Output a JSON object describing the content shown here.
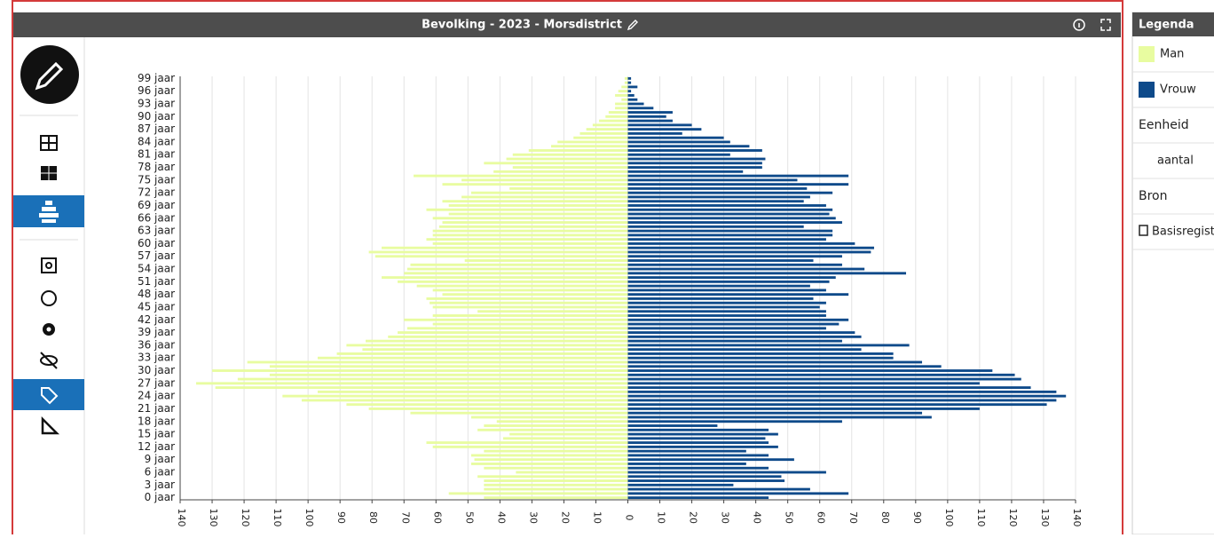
{
  "chart_data": {
    "type": "pyramid",
    "title": "Bevolking - 2023 - Morsdistrict",
    "categories": [
      "0 jaar",
      null,
      null,
      "3 jaar",
      null,
      null,
      "6 jaar",
      null,
      null,
      "9 jaar",
      null,
      null,
      "12 jaar",
      null,
      null,
      "15 jaar",
      null,
      null,
      "18 jaar",
      null,
      null,
      "21 jaar",
      null,
      null,
      "24 jaar",
      null,
      null,
      "27 jaar",
      null,
      null,
      "30 jaar",
      null,
      null,
      "33 jaar",
      null,
      null,
      "36 jaar",
      null,
      null,
      "39 jaar",
      null,
      null,
      "42 jaar",
      null,
      null,
      "45 jaar",
      null,
      null,
      "48 jaar",
      null,
      null,
      "51 jaar",
      null,
      null,
      "54 jaar",
      null,
      null,
      "57 jaar",
      null,
      null,
      "60 jaar",
      null,
      null,
      "63 jaar",
      null,
      null,
      "66 jaar",
      null,
      null,
      "69 jaar",
      null,
      null,
      "72 jaar",
      null,
      null,
      "75 jaar",
      null,
      null,
      "78 jaar",
      null,
      null,
      "81 jaar",
      null,
      null,
      "84 jaar",
      null,
      null,
      "87 jaar",
      null,
      null,
      "90 jaar",
      null,
      null,
      "93 jaar",
      null,
      null,
      "96 jaar",
      null,
      null,
      "99 jaar"
    ],
    "series": [
      {
        "name": "Man",
        "color": "#e8fca0",
        "values": [
          45,
          56,
          45,
          45,
          45,
          47,
          35,
          45,
          49,
          48,
          49,
          45,
          61,
          63,
          39,
          37,
          47,
          45,
          41,
          49,
          68,
          81,
          88,
          102,
          108,
          97,
          129,
          135,
          122,
          112,
          130,
          112,
          119,
          97,
          91,
          83,
          88,
          82,
          75,
          72,
          69,
          61,
          70,
          61,
          47,
          61,
          62,
          63,
          58,
          61,
          66,
          72,
          77,
          70,
          69,
          68,
          51,
          79,
          81,
          77,
          61,
          63,
          61,
          61,
          59,
          58,
          61,
          56,
          63,
          56,
          58,
          52,
          49,
          37,
          58,
          52,
          67,
          42,
          36,
          45,
          38,
          36,
          31,
          24,
          22,
          17,
          15,
          13,
          11,
          9,
          7,
          6,
          4,
          4,
          2,
          4,
          3,
          2,
          1,
          1
        ]
      },
      {
        "name": "Vrouw",
        "color": "#0e4a8a",
        "values": [
          44,
          69,
          57,
          33,
          49,
          48,
          62,
          44,
          37,
          52,
          44,
          37,
          47,
          44,
          43,
          47,
          44,
          28,
          67,
          95,
          92,
          110,
          131,
          134,
          137,
          134,
          126,
          110,
          123,
          121,
          114,
          98,
          92,
          83,
          83,
          73,
          88,
          67,
          73,
          71,
          62,
          66,
          69,
          62,
          62,
          60,
          62,
          58,
          69,
          62,
          57,
          63,
          65,
          87,
          74,
          67,
          58,
          67,
          76,
          77,
          71,
          62,
          64,
          64,
          55,
          67,
          65,
          63,
          64,
          62,
          55,
          57,
          64,
          56,
          69,
          53,
          69,
          36,
          42,
          42,
          43,
          32,
          42,
          38,
          32,
          30,
          17,
          23,
          20,
          14,
          12,
          14,
          8,
          5,
          3,
          2,
          1,
          3,
          1,
          1
        ]
      }
    ],
    "xlim": [
      -140,
      140
    ],
    "xticks": [
      {
        "value": -140,
        "label": "140"
      },
      {
        "value": -130,
        "label": "130"
      },
      {
        "value": -120,
        "label": "120"
      },
      {
        "value": -110,
        "label": "110"
      },
      {
        "value": -100,
        "label": "100"
      },
      {
        "value": -90,
        "label": "90"
      },
      {
        "value": -80,
        "label": "80"
      },
      {
        "value": -70,
        "label": "70"
      },
      {
        "value": -60,
        "label": "60"
      },
      {
        "value": -50,
        "label": "50"
      },
      {
        "value": -40,
        "label": "40"
      },
      {
        "value": -30,
        "label": "30"
      },
      {
        "value": -20,
        "label": "20"
      },
      {
        "value": -10,
        "label": "10"
      },
      0,
      10,
      20,
      30,
      40,
      50,
      60,
      70,
      80,
      90,
      100,
      110,
      120,
      130,
      140
    ],
    "grid": true
  },
  "legend": {
    "title": "Legenda",
    "unit_heading": "Eenheid",
    "unit": "aantal",
    "source_heading": "Bron",
    "source": "Basisregistraties"
  }
}
